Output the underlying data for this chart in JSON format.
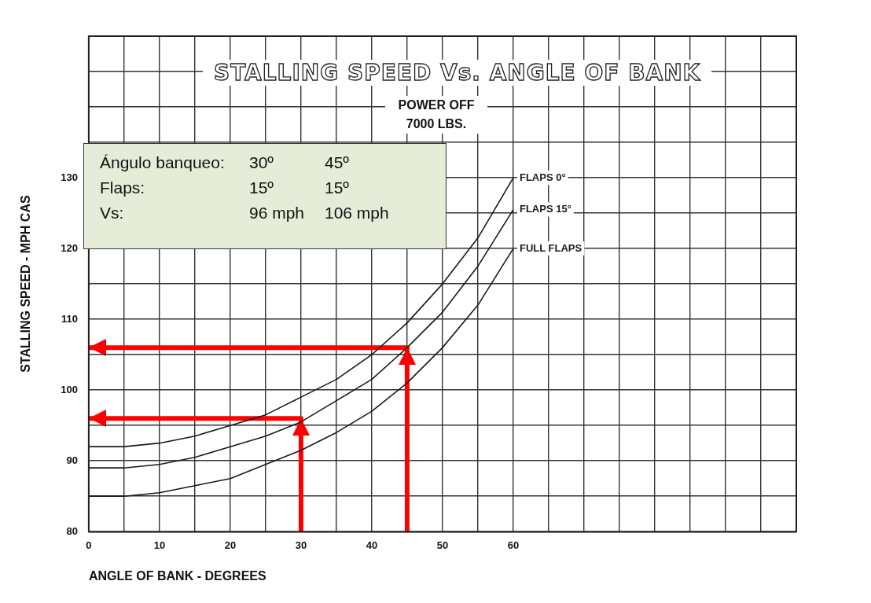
{
  "chart_data": {
    "type": "line",
    "title": "STALLING SPEED Vs. ANGLE OF BANK",
    "subtitle": "POWER OFF\n7000 LBS.",
    "xlabel": "ANGLE OF BANK - DEGREES",
    "ylabel": "STALLING SPEED - MPH CAS",
    "x": [
      0,
      5,
      10,
      15,
      20,
      25,
      30,
      35,
      40,
      45,
      50,
      55,
      60
    ],
    "series": [
      {
        "name": "FLAPS 0°",
        "color": "#1a1a1a",
        "values": [
          92,
          92,
          92.5,
          93.5,
          95,
          96.5,
          99,
          101.5,
          105,
          109.5,
          115,
          121.5,
          130
        ]
      },
      {
        "name": "FLAPS 15°",
        "color": "#1a1a1a",
        "values": [
          89,
          89,
          89.5,
          90.5,
          92,
          93.5,
          95.5,
          98.5,
          101.5,
          106,
          111,
          117.5,
          125.5
        ]
      },
      {
        "name": "FULL FLAPS",
        "color": "#1a1a1a",
        "values": [
          85,
          85,
          85.5,
          86.5,
          87.5,
          89.5,
          91.5,
          94,
          97,
          101,
          106,
          112,
          120
        ]
      },
      {
        "color": "#ff0000",
        "x": [
          30,
          30,
          0
        ],
        "values": [
          80,
          96,
          96
        ]
      },
      {
        "color": "#ff0000",
        "x": [
          45,
          45,
          0
        ],
        "values": [
          80,
          106,
          106
        ]
      }
    ],
    "annotations": [
      "Ángulo banqueo:",
      "30º",
      "45º",
      "Flaps:",
      "15º",
      "15º",
      "Vs:",
      "96 mph",
      "106 mph"
    ],
    "xlim": [
      0,
      100
    ],
    "ylim": [
      80,
      150
    ],
    "xticks": [
      0,
      {
        "value": 5,
        "label": null
      },
      10,
      {
        "value": 15,
        "label": null
      },
      20,
      {
        "value": 25,
        "label": null
      },
      30,
      {
        "value": 35,
        "label": null
      },
      40,
      {
        "value": 45,
        "label": null
      },
      50,
      {
        "value": 55,
        "label": null
      },
      60,
      {
        "value": 65,
        "label": null
      },
      {
        "value": 70,
        "label": null
      },
      {
        "value": 75,
        "label": null
      },
      {
        "value": 80,
        "label": null
      },
      {
        "value": 85,
        "label": null
      },
      {
        "value": 90,
        "label": null
      },
      {
        "value": 95,
        "label": null
      },
      {
        "value": 100,
        "label": null
      }
    ],
    "yticks": [
      80,
      {
        "value": 85,
        "label": null
      },
      90,
      {
        "value": 95,
        "label": null
      },
      100,
      {
        "value": 105,
        "label": null
      },
      110,
      {
        "value": 115,
        "label": null
      },
      120,
      {
        "value": 125,
        "label": null
      },
      130,
      {
        "value": 135,
        "label": null
      },
      {
        "value": 140,
        "label": null
      },
      {
        "value": 145,
        "label": null
      },
      {
        "value": 150,
        "label": null
      }
    ],
    "grid": true,
    "legend": false,
    "marker": "none",
    "line_style": "solid"
  }
}
